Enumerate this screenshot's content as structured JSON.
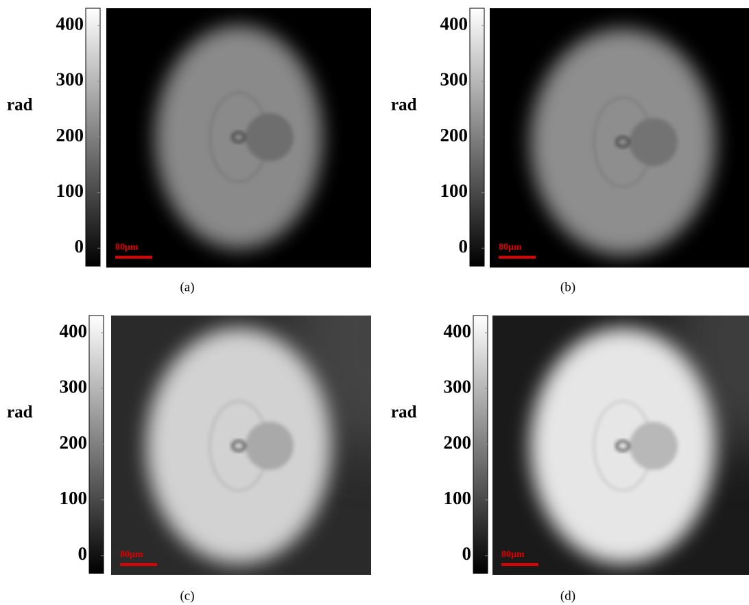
{
  "panels": [
    {
      "label": "(a)",
      "colorbar": {
        "label": "rad",
        "range": [
          -32,
          431
        ],
        "ticks": [
          0,
          100,
          200,
          300,
          400
        ]
      },
      "scale_bar": "80μm"
    },
    {
      "label": "(b)",
      "colorbar": {
        "label": "rad",
        "range": [
          -32,
          431
        ],
        "ticks": [
          0,
          100,
          200,
          300,
          400
        ]
      },
      "scale_bar": "80μm"
    },
    {
      "label": "(c)",
      "colorbar": {
        "label": "rad",
        "range": [
          -32,
          431
        ],
        "ticks": [
          0,
          100,
          200,
          300,
          400
        ]
      },
      "scale_bar": "80μm"
    },
    {
      "label": "(d)",
      "colorbar": {
        "label": "rad",
        "range": [
          -32,
          431
        ],
        "ticks": [
          0,
          100,
          200,
          300,
          400
        ]
      },
      "scale_bar": "80μm"
    }
  ]
}
